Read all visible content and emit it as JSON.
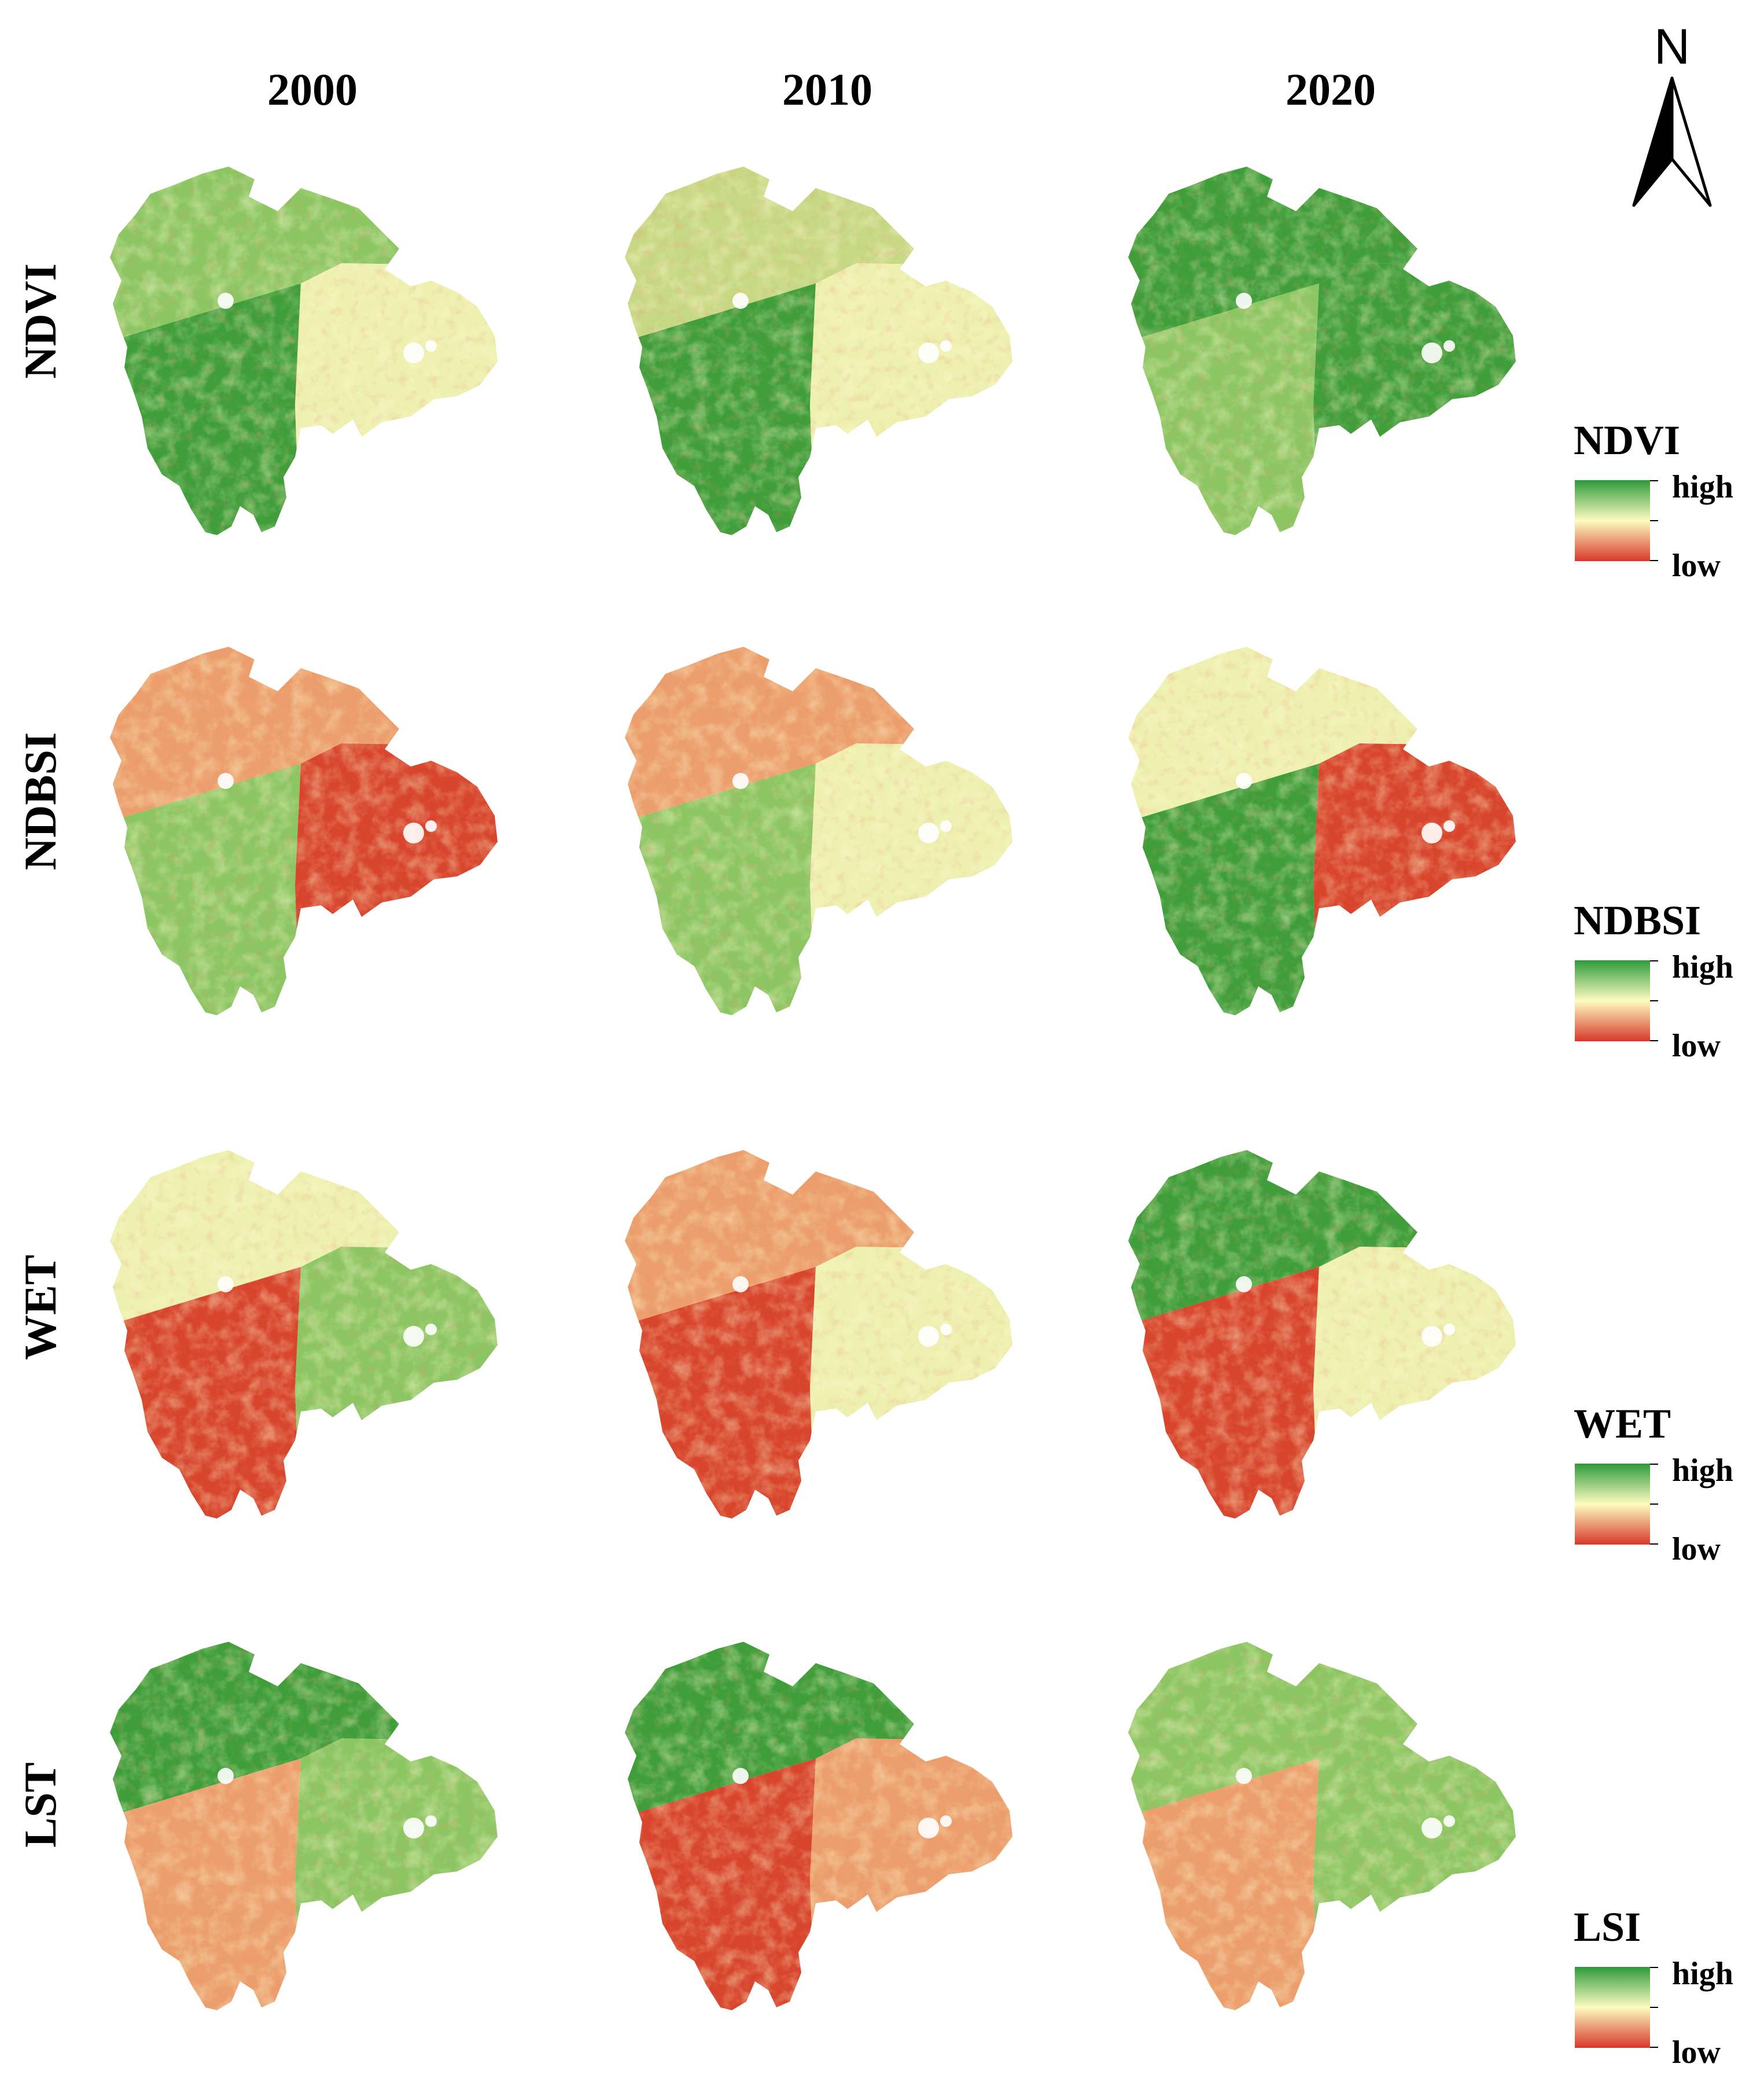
{
  "figure": {
    "years": [
      "2000",
      "2010",
      "2020"
    ],
    "rows": [
      {
        "id": "ndvi",
        "label": "NDVI",
        "legend_title": "NDVI",
        "legend_high": "high",
        "legend_low": "low",
        "zones": [
          [
            "greenish",
            "green",
            "yellowish"
          ],
          [
            "mixed",
            "green",
            "yellowish"
          ],
          [
            "green",
            "greenish",
            "green"
          ]
        ]
      },
      {
        "id": "ndbsi",
        "label": "NDBSI",
        "legend_title": "NDBSI",
        "legend_high": "high",
        "legend_low": "low",
        "zones": [
          [
            "orange",
            "greenish",
            "red"
          ],
          [
            "orange",
            "greenish",
            "yellowish"
          ],
          [
            "yellowish",
            "green",
            "red"
          ]
        ]
      },
      {
        "id": "wet",
        "label": "WET",
        "legend_title": "WET",
        "legend_high": "high",
        "legend_low": "low",
        "zones": [
          [
            "yellowish",
            "red",
            "greenish"
          ],
          [
            "orange",
            "red",
            "yellowish"
          ],
          [
            "green",
            "red",
            "yellowish"
          ]
        ]
      },
      {
        "id": "lst",
        "label": "LST",
        "legend_title": "LSI",
        "legend_high": "high",
        "legend_low": "low",
        "zones": [
          [
            "green",
            "orange",
            "greenish"
          ],
          [
            "green",
            "red",
            "orange"
          ],
          [
            "greenish",
            "orange",
            "greenish"
          ]
        ]
      }
    ]
  },
  "north_arrow": {
    "label": "N"
  },
  "colors": {
    "green": "#3f9e3a",
    "greenish": "#8cc663",
    "yellowish": "#eef0b0",
    "orange": "#ec9e6c",
    "red": "#d8452d",
    "mixed": "#c7d884",
    "ramp_high": "#2e9a3a",
    "ramp_mid": "#fdfcc0",
    "ramp_low": "#d7382a"
  }
}
